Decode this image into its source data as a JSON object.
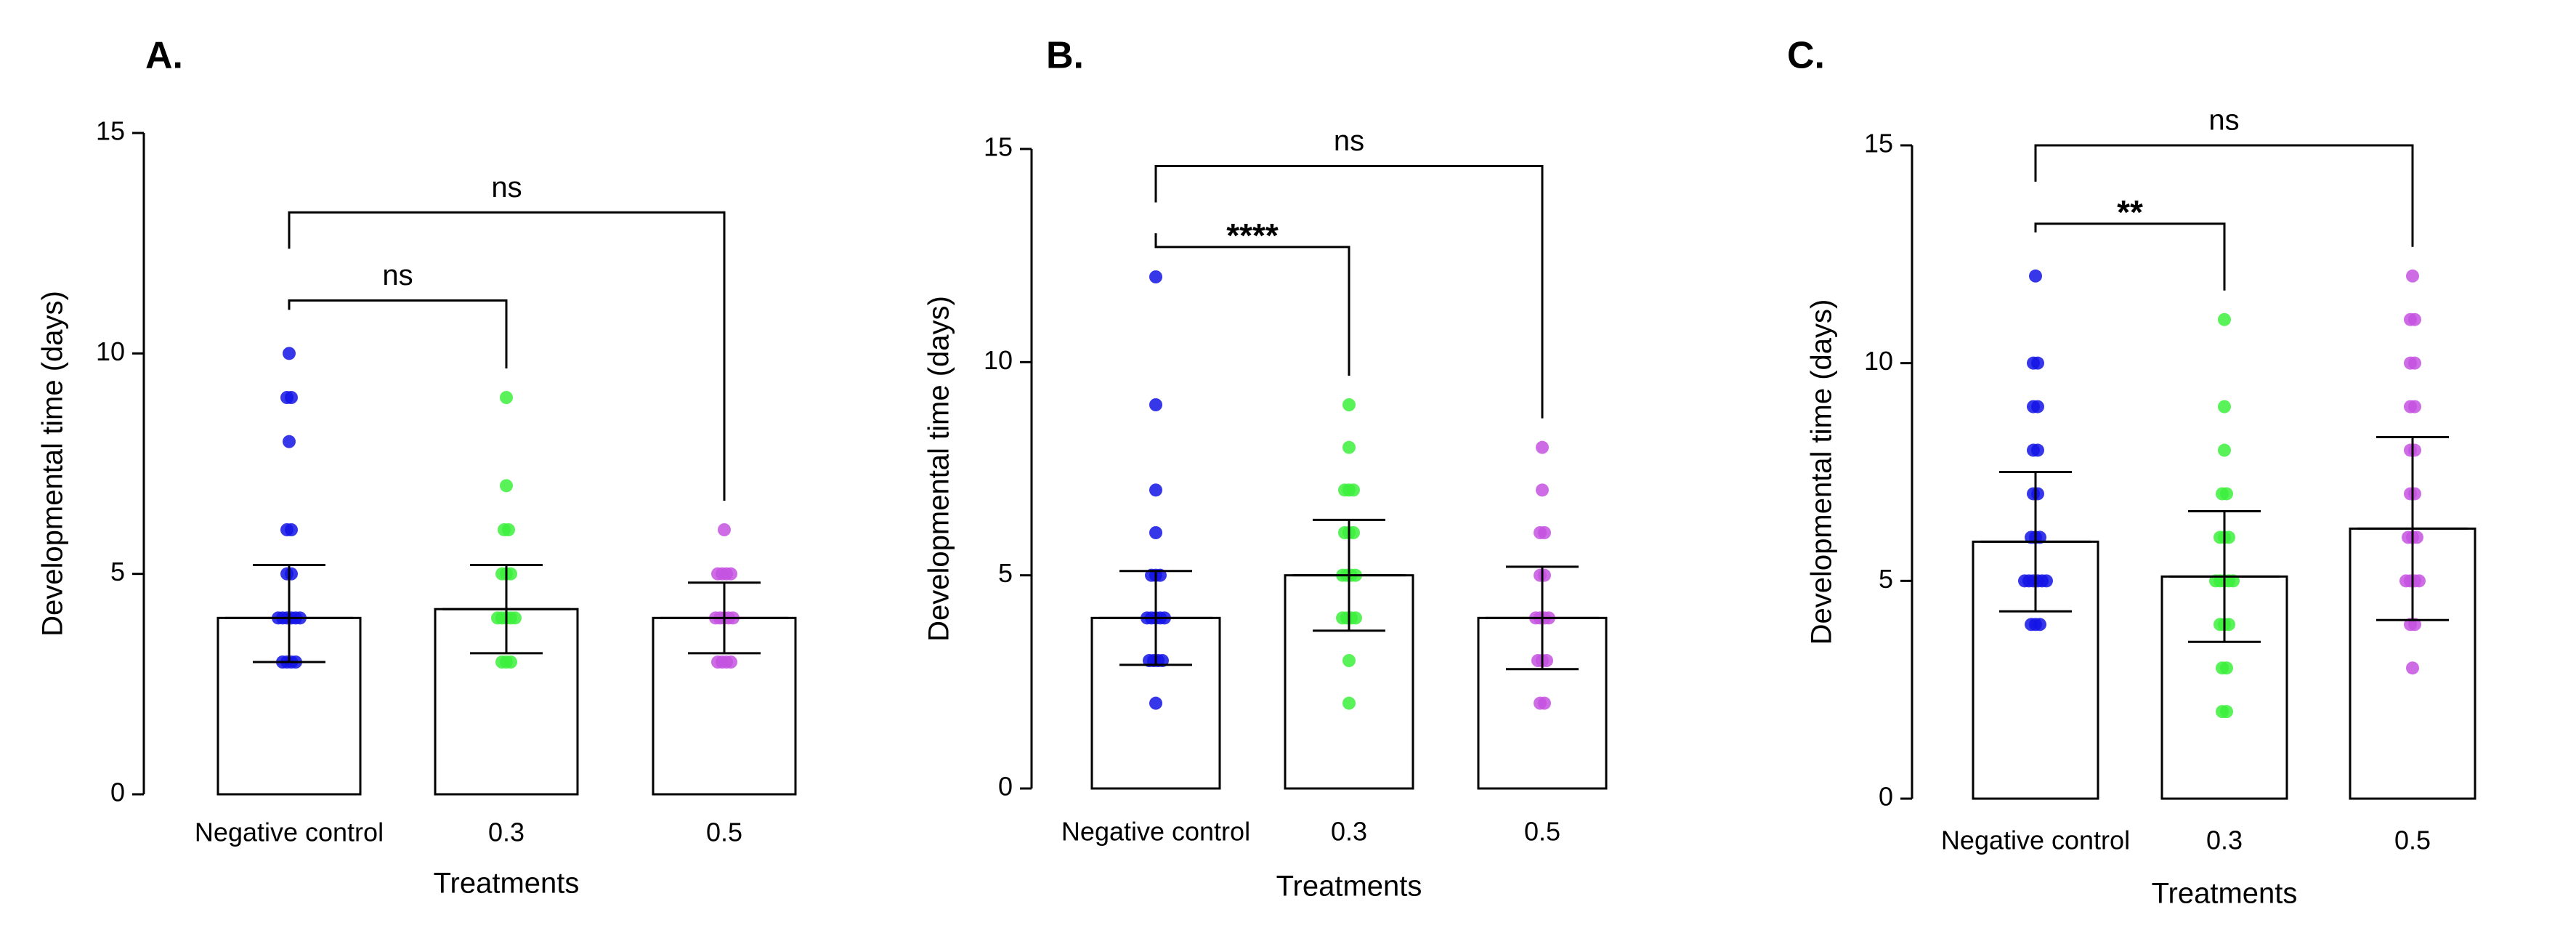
{
  "chart_data": [
    {
      "panel_label": "A.",
      "type": "bar",
      "title": "",
      "xlabel": "Treatments",
      "ylabel": "Developmental time (days)",
      "ylim": [
        0,
        15
      ],
      "yticks": [
        "0",
        "5",
        "10",
        "15"
      ],
      "categories": [
        "Negative control",
        "0.3",
        "0.5"
      ],
      "colors": [
        "#1414e6",
        "#3cf03c",
        "#c452e0"
      ],
      "values": [
        4.0,
        4.2,
        4.0
      ],
      "errors": [
        {
          "lower": 3.0,
          "upper": 5.2
        },
        {
          "lower": 3.2,
          "upper": 5.2
        },
        {
          "lower": 3.2,
          "upper": 4.8
        }
      ],
      "points": [
        [
          3,
          3,
          3,
          3,
          4,
          4,
          4,
          4,
          4,
          4,
          5,
          5,
          6,
          6,
          8,
          9,
          9,
          10
        ],
        [
          3,
          3,
          3,
          4,
          4,
          4,
          4,
          4,
          5,
          5,
          5,
          6,
          6,
          7,
          9
        ],
        [
          3,
          3,
          3,
          3,
          4,
          4,
          4,
          4,
          4,
          5,
          5,
          5,
          5,
          6
        ]
      ],
      "comparisons": [
        {
          "from": 0,
          "to": 1,
          "label": "ns",
          "y": 11.2,
          "bold": false
        },
        {
          "from": 0,
          "to": 2,
          "label": "ns",
          "y": 13.2,
          "bold": false
        }
      ]
    },
    {
      "panel_label": "B.",
      "type": "bar",
      "title": "",
      "xlabel": "Treatments",
      "ylabel": "Developmental time (days)",
      "ylim": [
        0,
        15
      ],
      "yticks": [
        "0",
        "5",
        "10",
        "15"
      ],
      "categories": [
        "Negative control",
        "0.3",
        "0.5"
      ],
      "colors": [
        "#1414e6",
        "#3cf03c",
        "#c452e0"
      ],
      "values": [
        4.0,
        5.0,
        4.0
      ],
      "errors": [
        {
          "lower": 2.9,
          "upper": 5.1
        },
        {
          "lower": 3.7,
          "upper": 6.3
        },
        {
          "lower": 2.8,
          "upper": 5.2
        }
      ],
      "points": [
        [
          2,
          3,
          3,
          3,
          3,
          4,
          4,
          4,
          4,
          4,
          5,
          5,
          5,
          6,
          7,
          9,
          12
        ],
        [
          2,
          3,
          4,
          4,
          4,
          4,
          5,
          5,
          5,
          5,
          6,
          6,
          6,
          7,
          7,
          7,
          8,
          9
        ],
        [
          2,
          2,
          3,
          3,
          3,
          4,
          4,
          4,
          4,
          5,
          5,
          6,
          6,
          7,
          8
        ]
      ],
      "comparisons": [
        {
          "from": 0,
          "to": 1,
          "label": "****",
          "y": 12.7,
          "bold": true
        },
        {
          "from": 0,
          "to": 2,
          "label": "ns",
          "y": 14.6,
          "bold": false
        }
      ]
    },
    {
      "panel_label": "C.",
      "type": "bar",
      "title": "",
      "xlabel": "Treatments",
      "ylabel": "Developmental time (days)",
      "ylim": [
        0,
        15
      ],
      "yticks": [
        "0",
        "5",
        "10",
        "15"
      ],
      "categories": [
        "Negative control",
        "0.3",
        "0.5"
      ],
      "colors": [
        "#1414e6",
        "#3cf03c",
        "#c452e0"
      ],
      "values": [
        5.9,
        5.1,
        6.2
      ],
      "errors": [
        {
          "lower": 4.3,
          "upper": 7.5
        },
        {
          "lower": 3.6,
          "upper": 6.6
        },
        {
          "lower": 4.1,
          "upper": 8.3
        }
      ],
      "points": [
        [
          4,
          4,
          4,
          5,
          5,
          5,
          5,
          5,
          5,
          6,
          6,
          6,
          7,
          7,
          8,
          8,
          9,
          9,
          10,
          10,
          12
        ],
        [
          2,
          2,
          3,
          3,
          4,
          4,
          4,
          5,
          5,
          5,
          5,
          5,
          6,
          6,
          6,
          7,
          7,
          8,
          9,
          11
        ],
        [
          3,
          4,
          4,
          5,
          5,
          5,
          5,
          6,
          6,
          6,
          7,
          7,
          8,
          8,
          9,
          9,
          10,
          10,
          11,
          11,
          12
        ]
      ],
      "comparisons": [
        {
          "from": 0,
          "to": 1,
          "label": "**",
          "y": 13.2,
          "bold": true
        },
        {
          "from": 0,
          "to": 2,
          "label": "ns",
          "y": 15.0,
          "bold": false
        }
      ]
    }
  ]
}
